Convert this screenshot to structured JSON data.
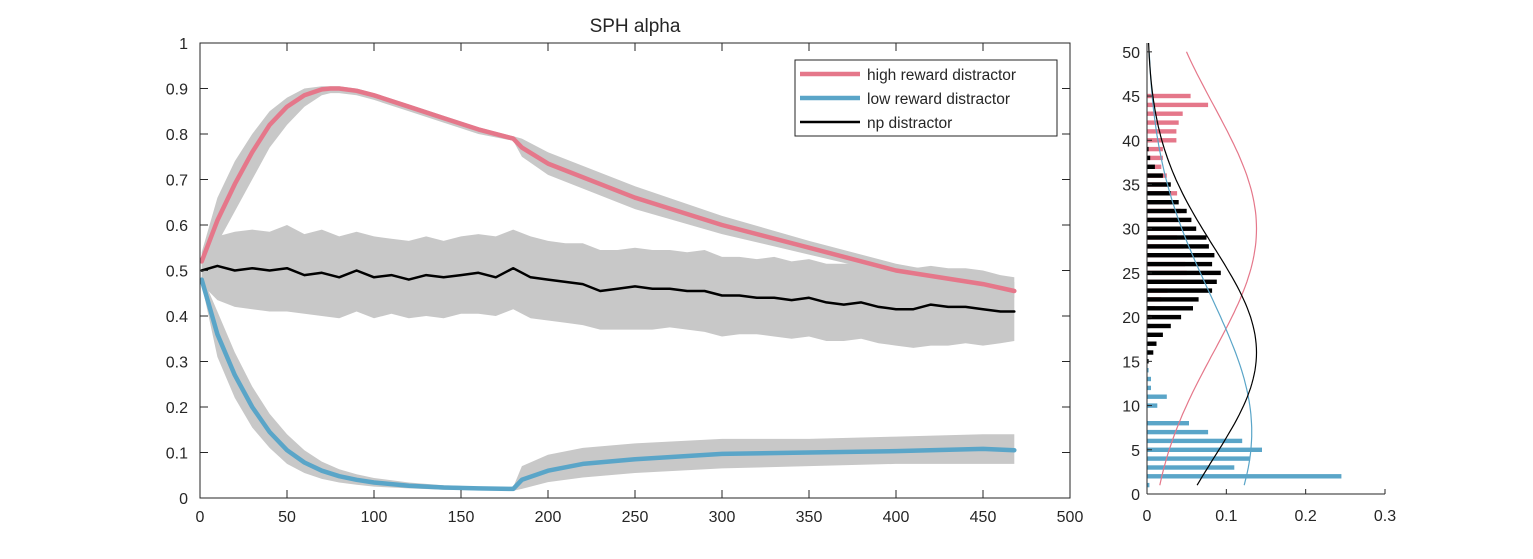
{
  "chart_data": [
    {
      "type": "line",
      "title": "SPH  alpha",
      "xlabel": "",
      "ylabel": "",
      "xlim": [
        0,
        500
      ],
      "ylim": [
        0,
        1
      ],
      "xticks": [
        "0",
        "50",
        "100",
        "150",
        "200",
        "250",
        "300",
        "350",
        "400",
        "450",
        "500"
      ],
      "yticks": [
        "0",
        "0.1",
        "0.2",
        "0.3",
        "0.4",
        "0.5",
        "0.6",
        "0.7",
        "0.8",
        "0.9",
        "1"
      ],
      "grid": false,
      "legend_position": "top-right",
      "series": [
        {
          "name": "high reward distractor",
          "color": "#e5778a",
          "x": [
            1,
            10,
            20,
            30,
            40,
            50,
            60,
            70,
            75,
            80,
            90,
            100,
            120,
            140,
            160,
            180,
            185,
            200,
            250,
            300,
            350,
            400,
            450,
            468
          ],
          "y": [
            0.52,
            0.61,
            0.69,
            0.76,
            0.82,
            0.86,
            0.885,
            0.898,
            0.9,
            0.9,
            0.895,
            0.885,
            0.86,
            0.835,
            0.81,
            0.79,
            0.77,
            0.735,
            0.66,
            0.6,
            0.55,
            0.5,
            0.47,
            0.455
          ],
          "upper": [
            0.54,
            0.66,
            0.74,
            0.8,
            0.85,
            0.88,
            0.9,
            0.905,
            0.905,
            0.905,
            0.9,
            0.89,
            0.865,
            0.84,
            0.815,
            0.795,
            0.79,
            0.76,
            0.685,
            0.62,
            0.565,
            0.515,
            0.48,
            0.475
          ],
          "lower": [
            0.5,
            0.56,
            0.63,
            0.7,
            0.77,
            0.82,
            0.86,
            0.885,
            0.89,
            0.89,
            0.885,
            0.875,
            0.85,
            0.825,
            0.8,
            0.785,
            0.75,
            0.71,
            0.635,
            0.58,
            0.535,
            0.49,
            0.455,
            0.44
          ]
        },
        {
          "name": "low reward distractor",
          "color": "#5aa5c8",
          "x": [
            1,
            10,
            20,
            30,
            40,
            50,
            60,
            70,
            80,
            90,
            100,
            120,
            140,
            160,
            180,
            185,
            200,
            220,
            250,
            300,
            350,
            400,
            450,
            468
          ],
          "y": [
            0.48,
            0.36,
            0.27,
            0.2,
            0.145,
            0.105,
            0.078,
            0.06,
            0.048,
            0.04,
            0.034,
            0.027,
            0.023,
            0.021,
            0.02,
            0.04,
            0.06,
            0.075,
            0.085,
            0.097,
            0.1,
            0.103,
            0.108,
            0.105
          ],
          "upper": [
            0.49,
            0.41,
            0.32,
            0.245,
            0.185,
            0.14,
            0.105,
            0.08,
            0.063,
            0.052,
            0.044,
            0.034,
            0.028,
            0.025,
            0.024,
            0.07,
            0.095,
            0.11,
            0.12,
            0.13,
            0.13,
            0.135,
            0.14,
            0.14
          ],
          "lower": [
            0.47,
            0.31,
            0.22,
            0.155,
            0.11,
            0.075,
            0.055,
            0.042,
            0.034,
            0.029,
            0.025,
            0.021,
            0.018,
            0.017,
            0.016,
            0.02,
            0.035,
            0.045,
            0.055,
            0.065,
            0.07,
            0.075,
            0.075,
            0.075
          ]
        },
        {
          "name": "np distractor",
          "color": "#000000",
          "x": [
            1,
            10,
            20,
            30,
            40,
            50,
            60,
            70,
            80,
            90,
            100,
            110,
            120,
            130,
            140,
            150,
            160,
            170,
            180,
            190,
            200,
            210,
            220,
            230,
            240,
            250,
            260,
            270,
            280,
            290,
            300,
            310,
            320,
            330,
            340,
            350,
            360,
            370,
            380,
            390,
            400,
            410,
            420,
            430,
            440,
            450,
            460,
            468
          ],
          "y": [
            0.5,
            0.51,
            0.5,
            0.505,
            0.5,
            0.505,
            0.49,
            0.495,
            0.485,
            0.5,
            0.485,
            0.49,
            0.48,
            0.49,
            0.485,
            0.49,
            0.495,
            0.485,
            0.505,
            0.485,
            0.48,
            0.475,
            0.47,
            0.455,
            0.46,
            0.465,
            0.46,
            0.46,
            0.455,
            0.455,
            0.445,
            0.445,
            0.44,
            0.44,
            0.435,
            0.44,
            0.43,
            0.425,
            0.43,
            0.42,
            0.415,
            0.415,
            0.425,
            0.42,
            0.42,
            0.415,
            0.41,
            0.41
          ],
          "upper": [
            0.53,
            0.575,
            0.585,
            0.59,
            0.585,
            0.6,
            0.58,
            0.59,
            0.575,
            0.585,
            0.575,
            0.57,
            0.565,
            0.575,
            0.565,
            0.575,
            0.58,
            0.575,
            0.59,
            0.575,
            0.565,
            0.56,
            0.56,
            0.545,
            0.545,
            0.55,
            0.545,
            0.545,
            0.54,
            0.545,
            0.53,
            0.53,
            0.525,
            0.53,
            0.52,
            0.525,
            0.515,
            0.515,
            0.515,
            0.51,
            0.505,
            0.505,
            0.51,
            0.505,
            0.505,
            0.5,
            0.49,
            0.485
          ],
          "lower": [
            0.47,
            0.435,
            0.42,
            0.415,
            0.41,
            0.41,
            0.405,
            0.4,
            0.395,
            0.41,
            0.395,
            0.405,
            0.395,
            0.4,
            0.395,
            0.405,
            0.405,
            0.4,
            0.415,
            0.395,
            0.39,
            0.385,
            0.38,
            0.37,
            0.37,
            0.37,
            0.37,
            0.375,
            0.37,
            0.365,
            0.355,
            0.36,
            0.36,
            0.355,
            0.35,
            0.355,
            0.345,
            0.345,
            0.35,
            0.34,
            0.335,
            0.33,
            0.335,
            0.335,
            0.34,
            0.335,
            0.34,
            0.345
          ]
        }
      ]
    },
    {
      "type": "bar",
      "orientation": "horizontal",
      "title": "",
      "xlim": [
        0,
        0.3
      ],
      "ylim": [
        0,
        51
      ],
      "xticks": [
        "0",
        "0.1",
        "0.2",
        "0.3"
      ],
      "yticks": [
        "0",
        "5",
        "10",
        "15",
        "20",
        "25",
        "30",
        "35",
        "40",
        "45",
        "50"
      ],
      "grid": false,
      "bins": [
        1,
        2,
        3,
        4,
        5,
        6,
        7,
        8,
        9,
        10,
        11,
        12,
        13,
        14,
        15,
        16,
        17,
        18,
        19,
        20,
        21,
        22,
        23,
        24,
        25,
        26,
        27,
        28,
        29,
        30,
        31,
        32,
        33,
        34,
        35,
        36,
        37,
        38,
        39,
        40,
        41,
        42,
        43,
        44,
        45
      ],
      "series": [
        {
          "name": "high reward distractor",
          "color": "#e5778a",
          "values": [
            0,
            0,
            0,
            0,
            0,
            0,
            0,
            0,
            0,
            0,
            0,
            0,
            0,
            0,
            0,
            0,
            0,
            0,
            0.002,
            0.005,
            0.01,
            0.018,
            0.026,
            0.045,
            0.05,
            0.048,
            0.055,
            0.046,
            0.038,
            0.048,
            0.04,
            0.043,
            0.032,
            0.038,
            0.025,
            0.025,
            0.018,
            0.02,
            0.02,
            0.037,
            0.037,
            0.04,
            0.045,
            0.077,
            0.055
          ]
        },
        {
          "name": "low reward distractor",
          "color": "#5aa5c8",
          "values": [
            0.003,
            0.245,
            0.11,
            0.13,
            0.145,
            0.12,
            0.077,
            0.053,
            0,
            0.013,
            0.025,
            0.005,
            0.005,
            0.002,
            0.002,
            0.003,
            0.003,
            0.003,
            0.004,
            0.004,
            0.005,
            0.002,
            0.001,
            0,
            0,
            0,
            0,
            0,
            0,
            0,
            0,
            0,
            0,
            0,
            0,
            0,
            0,
            0,
            0,
            0,
            0,
            0,
            0,
            0,
            0
          ]
        },
        {
          "name": "np distractor",
          "color": "#000000",
          "values": [
            0,
            0,
            0,
            0,
            0,
            0,
            0,
            0,
            0,
            0,
            0,
            0,
            0,
            0,
            0.002,
            0.008,
            0.012,
            0.02,
            0.03,
            0.043,
            0.058,
            0.065,
            0.082,
            0.088,
            0.093,
            0.082,
            0.085,
            0.078,
            0.075,
            0.062,
            0.056,
            0.05,
            0.04,
            0.03,
            0.03,
            0.02,
            0.01,
            0.004,
            0.002,
            0,
            0,
            0,
            0,
            0,
            0
          ]
        }
      ],
      "curves": [
        {
          "name": "high reward distractor",
          "color": "#e5778a",
          "mean": 30,
          "sd": 14,
          "scale": 0.138,
          "ymin": 1,
          "ymax": 50
        },
        {
          "name": "low reward distractor",
          "color": "#5aa5c8",
          "mean": 7,
          "sd": 15.5,
          "scale": 0.132,
          "ymin": 1,
          "ymax": 50
        },
        {
          "name": "np distractor",
          "color": "#000000",
          "mean": 16,
          "sd": 12,
          "scale": 0.138,
          "ymin": 1,
          "ymax": 51
        }
      ]
    }
  ]
}
